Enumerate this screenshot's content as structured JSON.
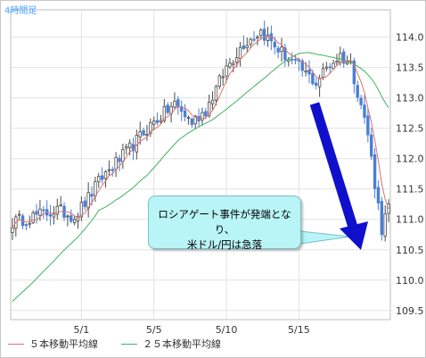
{
  "chart_data": {
    "type": "candlestick",
    "timeframe_label": "4時間足",
    "title": "",
    "xlabel": "",
    "ylabel": "",
    "ylim": [
      109.35,
      114.45
    ],
    "y_ticks": [
      109.5,
      110.0,
      110.5,
      111.0,
      111.5,
      112.0,
      112.5,
      113.0,
      113.5,
      114.0
    ],
    "y_tick_labels": [
      "109.5",
      "110.0",
      "110.5",
      "111.0",
      "111.5",
      "112.0",
      "112.5",
      "113.0",
      "113.5",
      "114.0"
    ],
    "x_tick_labels": [
      "5/1",
      "5/5",
      "5/10",
      "5/15"
    ],
    "x_tick_bar_index": [
      20,
      41,
      62,
      83
    ],
    "bar_count": 110,
    "key_close_points": [
      {
        "bar": 0,
        "close": 110.95
      },
      {
        "bar": 6,
        "close": 111.05
      },
      {
        "bar": 13,
        "close": 111.15
      },
      {
        "bar": 18,
        "close": 111.05
      },
      {
        "bar": 22,
        "close": 111.35
      },
      {
        "bar": 26,
        "close": 111.7
      },
      {
        "bar": 33,
        "close": 112.1
      },
      {
        "bar": 40,
        "close": 112.55
      },
      {
        "bar": 47,
        "close": 112.9
      },
      {
        "bar": 52,
        "close": 112.6
      },
      {
        "bar": 56,
        "close": 112.8
      },
      {
        "bar": 62,
        "close": 113.5
      },
      {
        "bar": 67,
        "close": 113.9
      },
      {
        "bar": 72,
        "close": 114.1
      },
      {
        "bar": 77,
        "close": 113.8
      },
      {
        "bar": 82,
        "close": 113.55
      },
      {
        "bar": 86,
        "close": 113.35
      },
      {
        "bar": 88,
        "close": 113.25
      },
      {
        "bar": 91,
        "close": 113.5
      },
      {
        "bar": 95,
        "close": 113.7
      },
      {
        "bar": 98,
        "close": 113.55
      },
      {
        "bar": 101,
        "close": 112.9
      },
      {
        "bar": 103,
        "close": 112.4
      },
      {
        "bar": 105,
        "close": 111.6
      },
      {
        "bar": 107,
        "close": 110.85
      },
      {
        "bar": 109,
        "close": 111.2
      }
    ],
    "series": [
      {
        "name": "５本移動平均線",
        "color": "#d9746c"
      },
      {
        "name": "２５本移動平均線",
        "color": "#3fb35f"
      }
    ],
    "ma25_start": 109.65,
    "annotation": {
      "lines": [
        "ロシアゲート事件が発端となり、",
        "米ドル/円は急落"
      ],
      "background": "#b9f4f6"
    },
    "arrow_color": "#1010cc",
    "up_color": "#4b4b4b",
    "down_color": "#4a7fd8",
    "grid": true
  }
}
